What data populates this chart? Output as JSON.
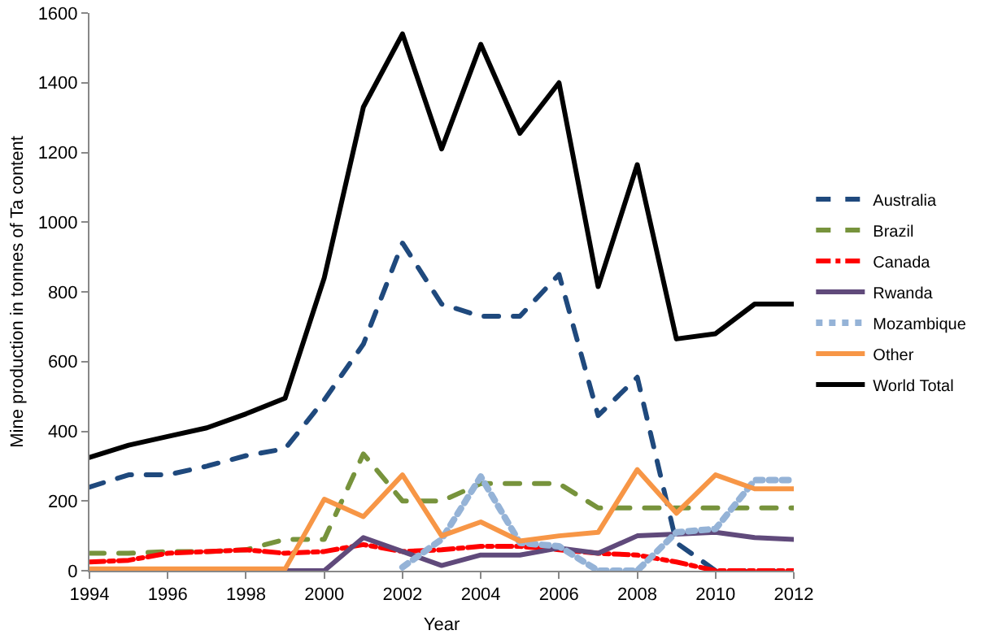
{
  "chart_data": {
    "type": "line",
    "xlabel": "Year",
    "ylabel": "Mine production in tonnes of Ta content",
    "x": [
      1994,
      1995,
      1996,
      1997,
      1998,
      1999,
      2000,
      2001,
      2002,
      2003,
      2004,
      2005,
      2006,
      2007,
      2008,
      2009,
      2010,
      2011,
      2012
    ],
    "series": [
      {
        "name": "Australia",
        "color": "#1f497d",
        "line_style": "dashed",
        "values": [
          240,
          275,
          275,
          300,
          330,
          350,
          490,
          650,
          940,
          765,
          730,
          730,
          850,
          445,
          555,
          80,
          0,
          0,
          0
        ]
      },
      {
        "name": "Brazil",
        "color": "#77933c",
        "line_style": "dashed",
        "values": [
          50,
          50,
          55,
          55,
          60,
          90,
          90,
          335,
          200,
          200,
          250,
          250,
          250,
          180,
          180,
          180,
          180,
          180,
          180
        ]
      },
      {
        "name": "Canada",
        "color": "#ff0000",
        "line_style": "dashdot",
        "values": [
          25,
          30,
          50,
          55,
          60,
          50,
          55,
          75,
          55,
          60,
          70,
          70,
          60,
          50,
          45,
          25,
          0,
          0,
          0
        ]
      },
      {
        "name": "Rwanda",
        "color": "#604a7b",
        "line_style": "solid",
        "values": [
          null,
          null,
          null,
          null,
          null,
          0,
          0,
          95,
          55,
          15,
          45,
          45,
          65,
          50,
          100,
          105,
          110,
          95,
          90
        ]
      },
      {
        "name": "Mozambique",
        "color": "#95b3d7",
        "line_style": "dotted",
        "values": [
          null,
          null,
          null,
          null,
          null,
          null,
          null,
          null,
          10,
          90,
          270,
          80,
          70,
          0,
          0,
          110,
          120,
          260,
          260
        ]
      },
      {
        "name": "Other",
        "color": "#f79646",
        "line_style": "solid",
        "values": [
          5,
          5,
          5,
          5,
          5,
          5,
          205,
          155,
          275,
          100,
          140,
          85,
          100,
          110,
          290,
          165,
          275,
          235,
          235
        ]
      },
      {
        "name": "World Total",
        "color": "#000000",
        "line_style": "solid",
        "values": [
          325,
          360,
          385,
          410,
          450,
          495,
          840,
          1330,
          1540,
          1210,
          1510,
          1255,
          1400,
          815,
          1165,
          665,
          680,
          765,
          765
        ]
      }
    ],
    "xlim": [
      1994,
      2012
    ],
    "xticks": [
      1994,
      1996,
      1998,
      2000,
      2002,
      2004,
      2006,
      2008,
      2010,
      2012
    ],
    "ylim": [
      0,
      1600
    ],
    "yticks": [
      0,
      200,
      400,
      600,
      800,
      1000,
      1200,
      1400,
      1600
    ],
    "grid": false,
    "legend": "right",
    "marker": "none"
  }
}
